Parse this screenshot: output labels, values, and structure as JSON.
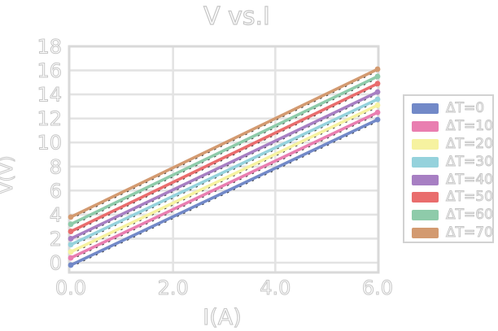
{
  "title": "V vs.I",
  "axes": {
    "x_label": "I(A)",
    "y_label": "V(V)",
    "x_tick_labels": [
      "0.0",
      "2.0",
      "4.0",
      "6.0"
    ],
    "x_tick_values": [
      0,
      2,
      4,
      6
    ],
    "y_tick_labels": [
      "0",
      "2",
      "4",
      "6",
      "8",
      "10",
      "12",
      "14",
      "16",
      "18"
    ],
    "y_tick_values": [
      0,
      2,
      4,
      6,
      8,
      10,
      12,
      14,
      16,
      18
    ]
  },
  "legend": {
    "items": [
      {
        "label": "ΔT=0",
        "color": "#7289c8"
      },
      {
        "label": "ΔT=10",
        "color": "#e97eb0"
      },
      {
        "label": "ΔT=20",
        "color": "#f6f2a0"
      },
      {
        "label": "ΔT=30",
        "color": "#95d2dc"
      },
      {
        "label": "ΔT=40",
        "color": "#a77fc3"
      },
      {
        "label": "ΔT=50",
        "color": "#e96d6d"
      },
      {
        "label": "ΔT=60",
        "color": "#8ecbaa"
      },
      {
        "label": "ΔT=70",
        "color": "#d39a70"
      }
    ]
  },
  "colors": {
    "background": "#ffffff",
    "grid": "#e3e3e3",
    "plot_border": "#d9d9d9",
    "text_outline": "#c6c6c6",
    "dash_underlay": "#3a3a3a"
  },
  "chart_data": {
    "type": "line",
    "title": "V vs.I",
    "xlabel": "I(A)",
    "ylabel": "V(V)",
    "x": [
      0,
      6
    ],
    "series": [
      {
        "name": "ΔT=0",
        "color": "#7289c8",
        "values": [
          -0.2,
          11.9
        ]
      },
      {
        "name": "ΔT=10",
        "color": "#e97eb0",
        "values": [
          0.4,
          12.5
        ]
      },
      {
        "name": "ΔT=20",
        "color": "#f6f2a0",
        "values": [
          0.9,
          13.1
        ]
      },
      {
        "name": "ΔT=30",
        "color": "#95d2dc",
        "values": [
          1.5,
          13.6
        ]
      },
      {
        "name": "ΔT=40",
        "color": "#a77fc3",
        "values": [
          2.0,
          14.2
        ]
      },
      {
        "name": "ΔT=50",
        "color": "#e96d6d",
        "values": [
          2.6,
          14.9
        ]
      },
      {
        "name": "ΔT=60",
        "color": "#8ecbaa",
        "values": [
          3.2,
          15.5
        ]
      },
      {
        "name": "ΔT=70",
        "color": "#d39a70",
        "values": [
          3.8,
          16.1
        ]
      }
    ],
    "xlim": [
      0,
      6
    ],
    "ylim": [
      -0.8,
      18
    ],
    "grid": true,
    "legend_position": "right",
    "notes": "parallel straight lines, slope ≈ 2 V/A, round markers at both endpoints, faint black dashed underlay along each line, hollow light-gray outlined text"
  }
}
